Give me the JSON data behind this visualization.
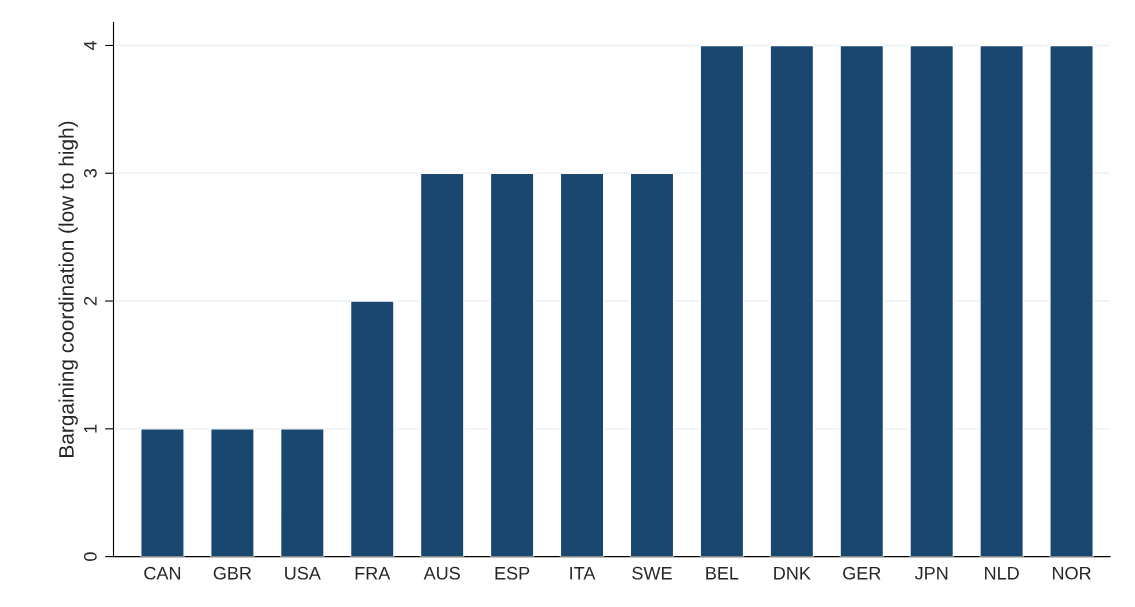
{
  "chart_data": {
    "type": "bar",
    "ylabel": "Bargaining coordination (low to high)",
    "categories": [
      "CAN",
      "GBR",
      "USA",
      "FRA",
      "AUS",
      "ESP",
      "ITA",
      "SWE",
      "BEL",
      "DNK",
      "GER",
      "JPN",
      "NLD",
      "NOR"
    ],
    "values": [
      1,
      1,
      1,
      2,
      3,
      3,
      3,
      3,
      4,
      4,
      4,
      4,
      4,
      4
    ],
    "color": "#1a476f",
    "ylim": [
      0,
      4.18
    ],
    "yticks": [
      0,
      1,
      2,
      3,
      4
    ],
    "grid": "y"
  }
}
